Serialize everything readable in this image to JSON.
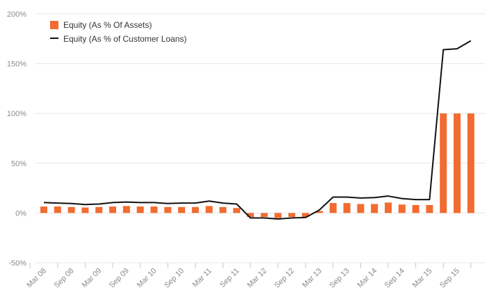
{
  "colors": {
    "bar": "#f26b30",
    "line": "#111111",
    "grid": "#e6e6e6",
    "axis_text": "#8a8a8a"
  },
  "chart_data": {
    "type": "bar",
    "title": "",
    "xlabel": "",
    "ylabel": "",
    "ylim": [
      -50,
      200
    ],
    "grid": true,
    "legend_position": "top-left",
    "y_ticks": [
      "-50%",
      "0%",
      "50%",
      "100%",
      "150%",
      "200%"
    ],
    "y_tick_values": [
      -50,
      0,
      50,
      100,
      150,
      200
    ],
    "x_tick_labels": [
      "Mar 08",
      "Sep 08",
      "Mar 09",
      "Sep 09",
      "Mar 10",
      "Sep 10",
      "Mar 11",
      "Sep 11",
      "Mar 12",
      "Sep 12",
      "Mar 13",
      "Sep 13",
      "Mar 14",
      "Sep 14",
      "Mar 15",
      "Sep 15"
    ],
    "categories": [
      "Mar 08",
      "Jun 08",
      "Sep 08",
      "Dec 08",
      "Mar 09",
      "Jun 09",
      "Sep 09",
      "Dec 09",
      "Mar 10",
      "Jun 10",
      "Sep 10",
      "Dec 10",
      "Mar 11",
      "Jun 11",
      "Sep 11",
      "Dec 11",
      "Mar 12",
      "Jun 12",
      "Sep 12",
      "Dec 12",
      "Mar 13",
      "Jun 13",
      "Sep 13",
      "Dec 13",
      "Mar 14",
      "Jun 14",
      "Sep 14",
      "Dec 14",
      "Mar 15",
      "Jun 15",
      "Sep 15",
      "Dec 15"
    ],
    "series": [
      {
        "name": "Equity (As % Of Assets)",
        "type": "bar",
        "values": [
          6.5,
          6.5,
          6,
          5.5,
          6,
          6.5,
          7,
          6.5,
          6.5,
          6,
          6,
          6,
          7,
          6,
          5,
          -4,
          -4,
          -5,
          -4,
          -4,
          2,
          10,
          10,
          9,
          9,
          10.5,
          8.5,
          8,
          8,
          100,
          100,
          100
        ]
      },
      {
        "name": "Equity (As % of Customer Loans)",
        "type": "line",
        "values": [
          10.5,
          10,
          9.5,
          8.5,
          9,
          10.5,
          11,
          10.5,
          10.5,
          9.5,
          10,
          10,
          12,
          10,
          9,
          -5,
          -5,
          -6,
          -5,
          -4.5,
          3,
          16,
          16,
          15,
          15.5,
          17,
          14.5,
          13.5,
          13.5,
          164,
          165,
          173
        ]
      }
    ]
  }
}
